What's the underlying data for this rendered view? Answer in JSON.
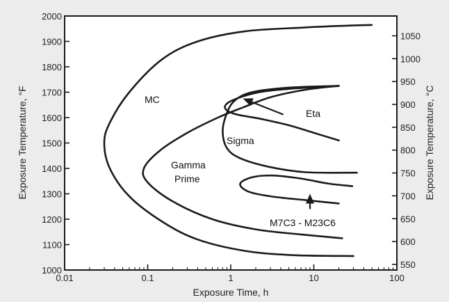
{
  "chart_data": {
    "type": "line",
    "xscale": "log",
    "xlabel": "Exposure Time, h",
    "ylabel_left": "Exposure Temperature, °F",
    "ylabel_right": "Exposure Temperature, °C",
    "xlim": [
      0.01,
      100
    ],
    "ylim_left": [
      1000,
      2000
    ],
    "ylim_right_c": [
      537.8,
      1093.3
    ],
    "x_ticks": [
      {
        "value": 0.01,
        "label": "0.01"
      },
      {
        "value": 0.1,
        "label": "0.1"
      },
      {
        "value": 1,
        "label": "1"
      },
      {
        "value": 10,
        "label": "10"
      },
      {
        "value": 100,
        "label": "100"
      }
    ],
    "y_ticks_left": [
      {
        "value": 1000,
        "label": "1000"
      },
      {
        "value": 1100,
        "label": "1100"
      },
      {
        "value": 1200,
        "label": "1200"
      },
      {
        "value": 1300,
        "label": "1300"
      },
      {
        "value": 1400,
        "label": "1400"
      },
      {
        "value": 1500,
        "label": "1500"
      },
      {
        "value": 1600,
        "label": "1600"
      },
      {
        "value": 1700,
        "label": "1700"
      },
      {
        "value": 1800,
        "label": "1800"
      },
      {
        "value": 1900,
        "label": "1900"
      },
      {
        "value": 2000,
        "label": "2000"
      }
    ],
    "y_ticks_right": [
      {
        "value": 550,
        "label": "550"
      },
      {
        "value": 600,
        "label": "600"
      },
      {
        "value": 650,
        "label": "650"
      },
      {
        "value": 700,
        "label": "700"
      },
      {
        "value": 750,
        "label": "750"
      },
      {
        "value": 800,
        "label": "800"
      },
      {
        "value": 850,
        "label": "850"
      },
      {
        "value": 900,
        "label": "900"
      },
      {
        "value": 950,
        "label": "950"
      },
      {
        "value": 1000,
        "label": "1000"
      },
      {
        "value": 1050,
        "label": "1050"
      }
    ],
    "grid": false,
    "series": [
      {
        "points": [
          [
            50,
            1965
          ],
          [
            25,
            1962
          ],
          [
            8,
            1955
          ],
          [
            1.5,
            1940
          ],
          [
            0.4,
            1900
          ],
          [
            0.15,
            1830
          ],
          [
            0.06,
            1700
          ],
          [
            0.035,
            1580
          ],
          [
            0.03,
            1500
          ],
          [
            0.035,
            1400
          ],
          [
            0.06,
            1290
          ],
          [
            0.15,
            1190
          ],
          [
            0.4,
            1120
          ],
          [
            1.5,
            1075
          ],
          [
            6,
            1058
          ],
          [
            30,
            1055
          ]
        ]
      },
      {
        "points": [
          [
            20,
            1725
          ],
          [
            5,
            1718
          ],
          [
            1.8,
            1700
          ],
          [
            1.1,
            1665
          ],
          [
            0.88,
            1610
          ],
          [
            0.8,
            1545
          ],
          [
            0.9,
            1480
          ],
          [
            1.3,
            1440
          ],
          [
            3,
            1405
          ],
          [
            8,
            1385
          ],
          [
            33,
            1383
          ]
        ]
      },
      {
        "points": [
          [
            20,
            1725
          ],
          [
            8,
            1710
          ],
          [
            3,
            1680
          ],
          [
            1.4,
            1640
          ],
          [
            0.7,
            1600
          ],
          [
            0.3,
            1540
          ],
          [
            0.14,
            1470
          ],
          [
            0.09,
            1400
          ],
          [
            0.1,
            1345
          ],
          [
            0.2,
            1270
          ],
          [
            0.6,
            1200
          ],
          [
            2,
            1160
          ],
          [
            7,
            1140
          ],
          [
            22,
            1125
          ]
        ]
      },
      {
        "points": [
          [
            20,
            1510
          ],
          [
            10,
            1540
          ],
          [
            5,
            1570
          ],
          [
            2.3,
            1595
          ],
          [
            1.1,
            1615
          ],
          [
            0.85,
            1640
          ],
          [
            1.05,
            1668
          ],
          [
            2.2,
            1700
          ],
          [
            6,
            1715
          ],
          [
            20,
            1725
          ]
        ]
      },
      {
        "points": [
          [
            29,
            1330
          ],
          [
            15,
            1340
          ],
          [
            7,
            1360
          ],
          [
            3.2,
            1372
          ],
          [
            1.8,
            1365
          ],
          [
            1.3,
            1340
          ],
          [
            1.6,
            1310
          ],
          [
            3,
            1290
          ],
          [
            8,
            1275
          ],
          [
            20,
            1262
          ]
        ]
      }
    ],
    "annotations": [
      {
        "text": "MC",
        "x": 0.25,
        "y": 1670
      },
      {
        "text": "Eta",
        "x": 5.2,
        "y": 1605,
        "arrow_to": [
          1.4,
          1675
        ]
      },
      {
        "text": "Sigma",
        "x": 1.7,
        "y": 1500
      },
      {
        "text": "Gamma",
        "x": 0.3,
        "y": 1410
      },
      {
        "text": "Prime",
        "x": 0.3,
        "y": 1365
      },
      {
        "text": "M7C3 - M23C6",
        "x": 6,
        "y": 1190,
        "arrow_from": [
          9,
          1240
        ],
        "arrow_to": [
          9,
          1300
        ]
      }
    ]
  },
  "colors": {
    "background": "#ececec",
    "plot_area": "#ffffff",
    "line": "#1a1a1a"
  }
}
